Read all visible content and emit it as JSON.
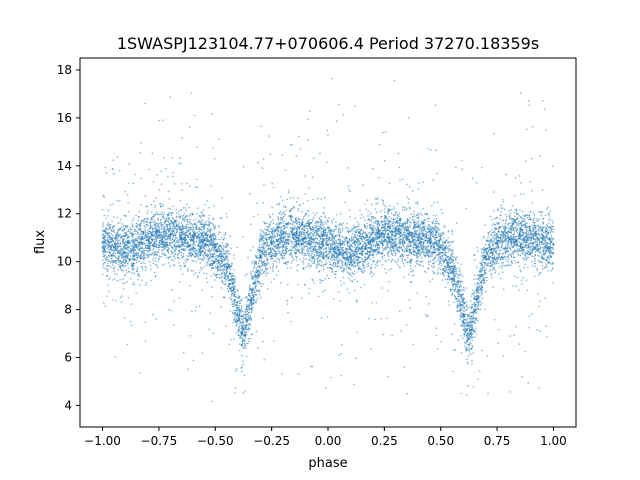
{
  "chart_data": {
    "type": "scatter",
    "title": "1SWASPJ123104.77+070606.4 Period 37270.18359s",
    "xlabel": "phase",
    "ylabel": "flux",
    "xlim": [
      -1.1,
      1.1
    ],
    "ylim": [
      3.1,
      18.5
    ],
    "xticks": [
      -1.0,
      -0.75,
      -0.5,
      -0.25,
      0.0,
      0.25,
      0.5,
      0.75,
      1.0
    ],
    "xtick_labels": [
      "−1.00",
      "−0.75",
      "−0.50",
      "−0.25",
      "0.00",
      "0.25",
      "0.50",
      "0.75",
      "1.00"
    ],
    "yticks": [
      4,
      6,
      8,
      10,
      12,
      14,
      16,
      18
    ],
    "ytick_labels": [
      "4",
      "6",
      "8",
      "10",
      "12",
      "14",
      "16",
      "18"
    ],
    "grid": false,
    "marker_color": "#1f77b4",
    "series": [
      {
        "values": [
          {
            "x": -1.0,
            "y": 10.8
          },
          {
            "x": -0.95,
            "y": 10.6
          },
          {
            "x": -0.9,
            "y": 10.4
          },
          {
            "x": -0.85,
            "y": 10.6
          },
          {
            "x": -0.8,
            "y": 10.9
          },
          {
            "x": -0.75,
            "y": 11.1
          },
          {
            "x": -0.7,
            "y": 11.1
          },
          {
            "x": -0.65,
            "y": 11.0
          },
          {
            "x": -0.6,
            "y": 10.9
          },
          {
            "x": -0.55,
            "y": 10.9
          },
          {
            "x": -0.5,
            "y": 10.6
          },
          {
            "x": -0.45,
            "y": 9.8
          },
          {
            "x": -0.42,
            "y": 8.8
          },
          {
            "x": -0.4,
            "y": 7.8
          },
          {
            "x": -0.38,
            "y": 7.0
          },
          {
            "x": -0.36,
            "y": 7.5
          },
          {
            "x": -0.34,
            "y": 8.4
          },
          {
            "x": -0.32,
            "y": 9.4
          },
          {
            "x": -0.3,
            "y": 10.2
          },
          {
            "x": -0.25,
            "y": 10.8
          },
          {
            "x": -0.2,
            "y": 11.0
          },
          {
            "x": -0.15,
            "y": 11.1
          },
          {
            "x": -0.1,
            "y": 11.0
          },
          {
            "x": -0.05,
            "y": 10.8
          },
          {
            "x": 0.0,
            "y": 10.7
          },
          {
            "x": 0.05,
            "y": 10.5
          },
          {
            "x": 0.1,
            "y": 10.3
          },
          {
            "x": 0.15,
            "y": 10.6
          },
          {
            "x": 0.2,
            "y": 10.9
          },
          {
            "x": 0.25,
            "y": 11.1
          },
          {
            "x": 0.3,
            "y": 11.1
          },
          {
            "x": 0.35,
            "y": 11.0
          },
          {
            "x": 0.4,
            "y": 10.9
          },
          {
            "x": 0.45,
            "y": 10.9
          },
          {
            "x": 0.5,
            "y": 10.6
          },
          {
            "x": 0.55,
            "y": 9.8
          },
          {
            "x": 0.58,
            "y": 8.8
          },
          {
            "x": 0.6,
            "y": 7.8
          },
          {
            "x": 0.62,
            "y": 7.0
          },
          {
            "x": 0.64,
            "y": 7.5
          },
          {
            "x": 0.66,
            "y": 8.4
          },
          {
            "x": 0.68,
            "y": 9.4
          },
          {
            "x": 0.7,
            "y": 10.2
          },
          {
            "x": 0.75,
            "y": 10.8
          },
          {
            "x": 0.8,
            "y": 11.0
          },
          {
            "x": 0.85,
            "y": 11.1
          },
          {
            "x": 0.9,
            "y": 11.0
          },
          {
            "x": 0.95,
            "y": 10.8
          },
          {
            "x": 1.0,
            "y": 10.7
          }
        ]
      }
    ]
  }
}
